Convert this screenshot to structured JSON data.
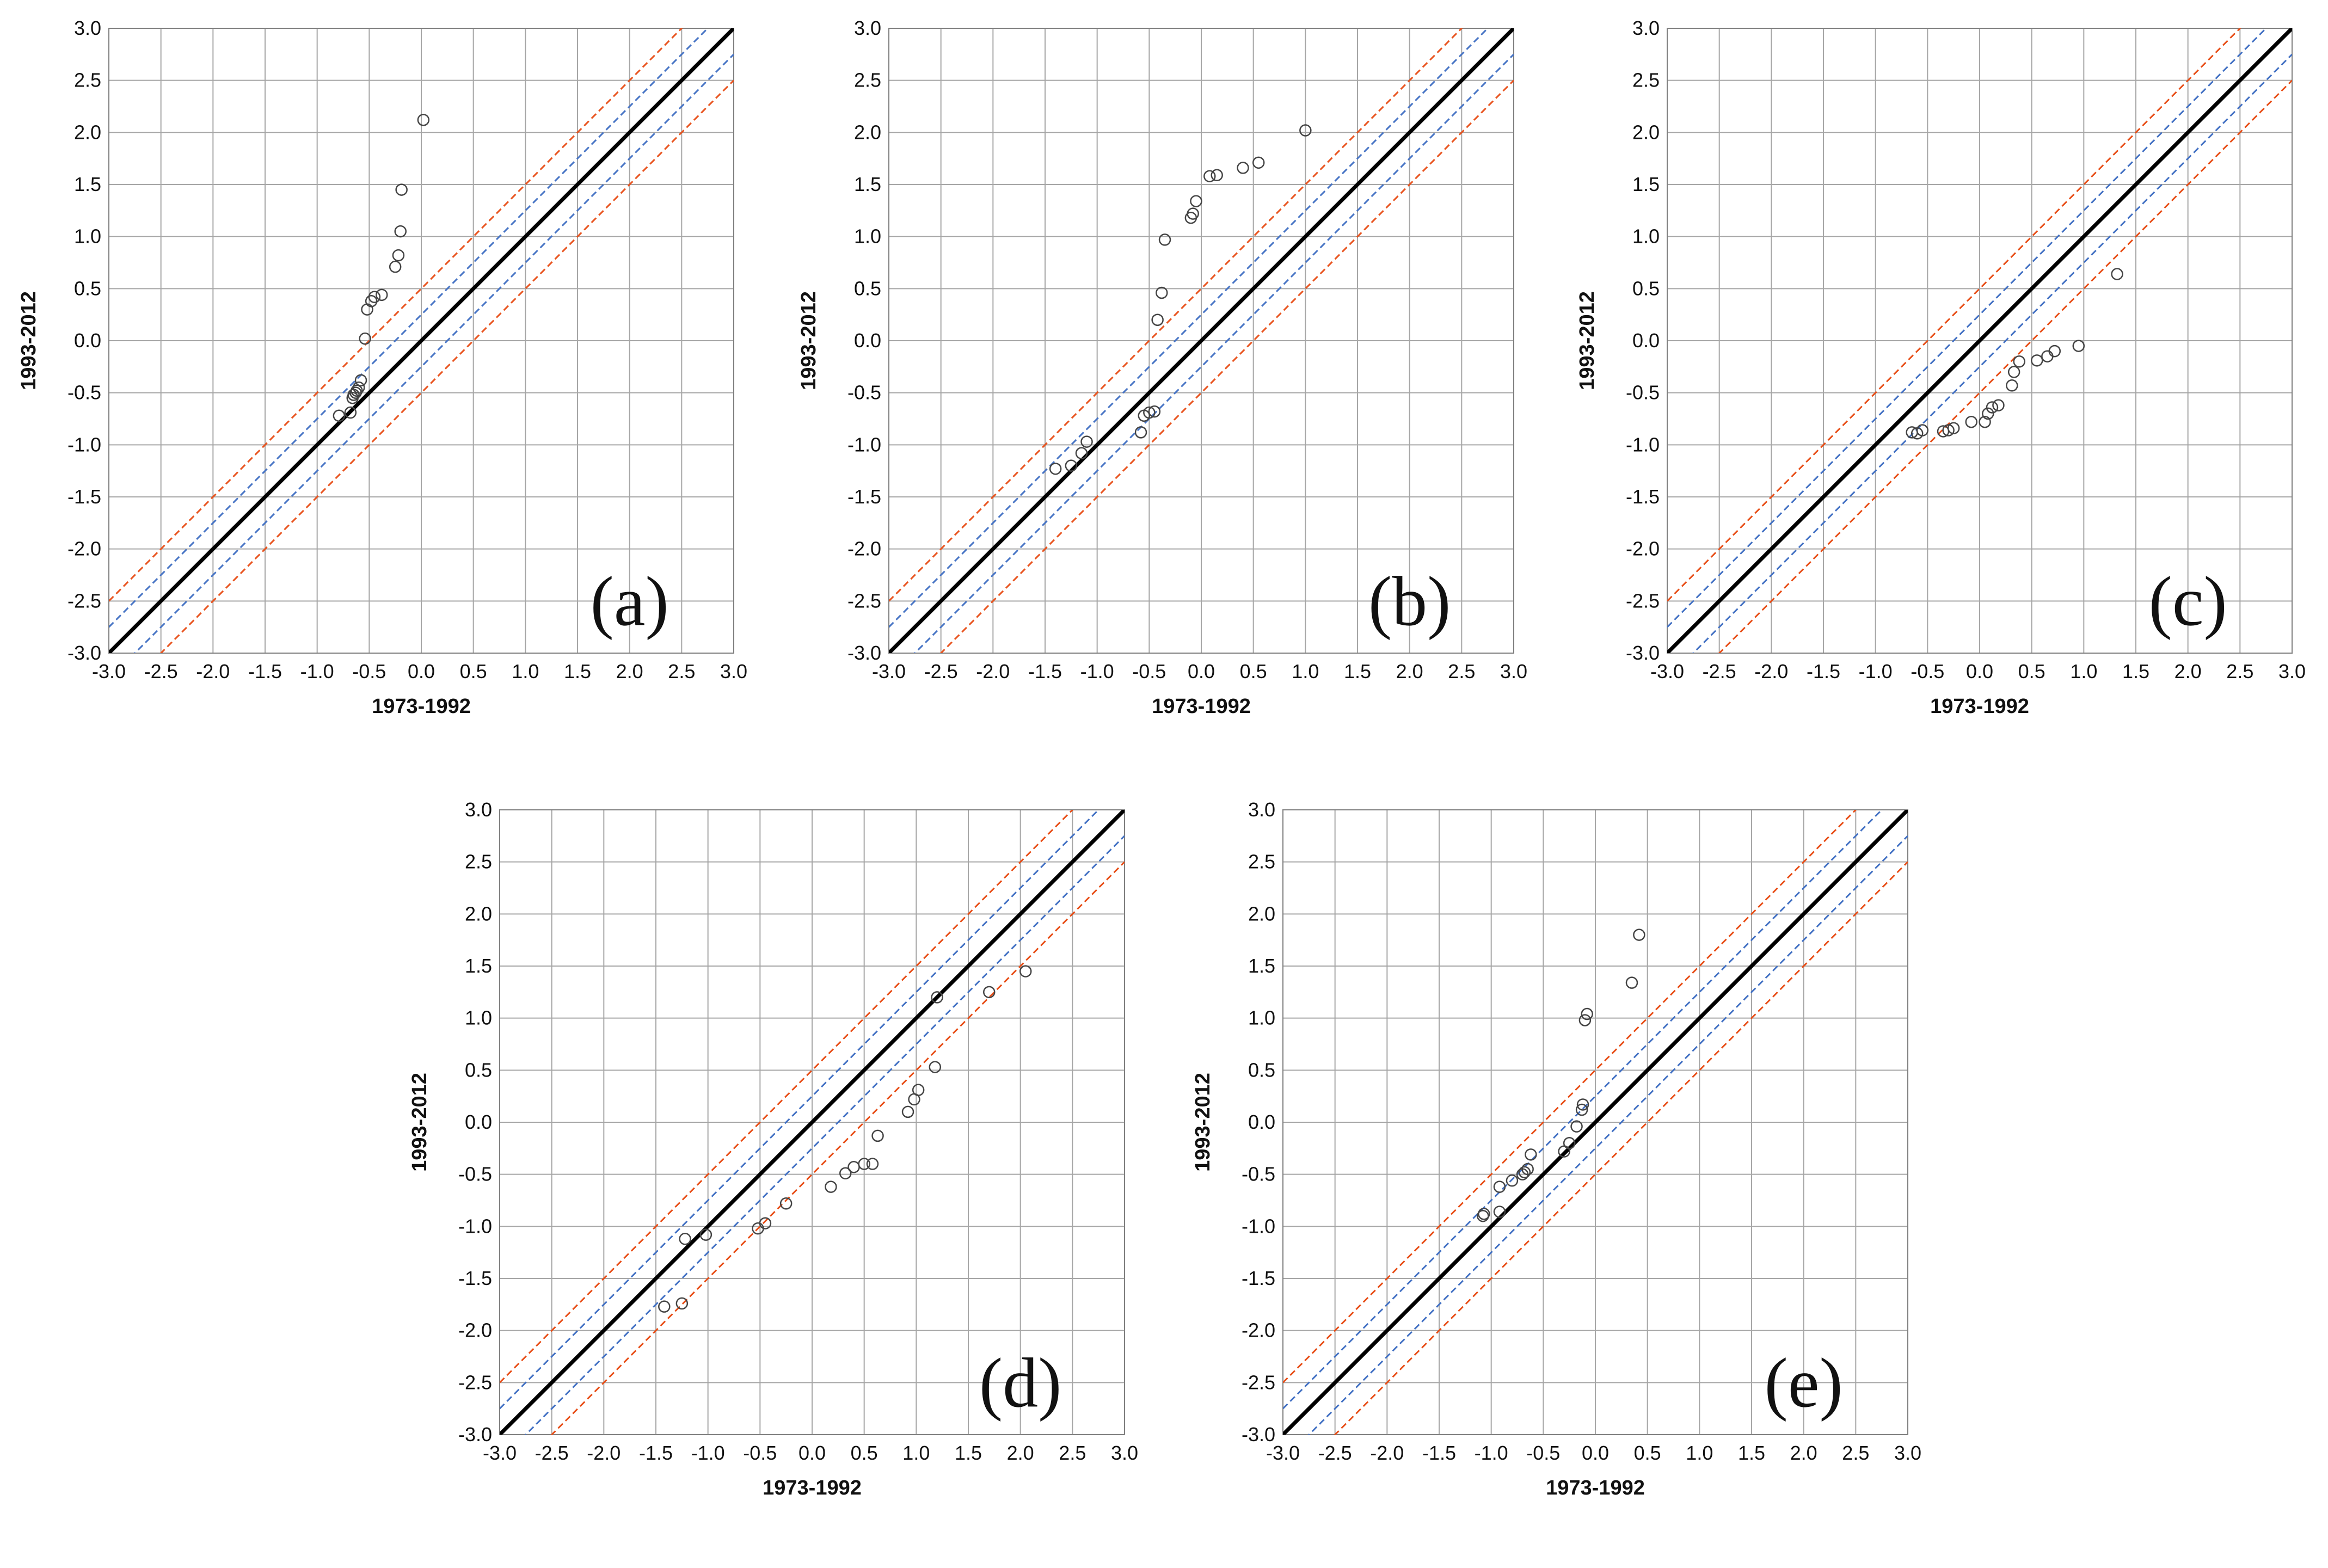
{
  "colors": {
    "grid": "#a6a6a6",
    "axis": "#7f7f7f",
    "identity_line": "#000000",
    "inner_band": "#4472c4",
    "outer_band": "#e8501a",
    "marker": "#444444"
  },
  "chart_data": [
    {
      "type": "scatter",
      "panel_label": "(a)",
      "xlabel": "1973-1992",
      "ylabel": "1993-2012",
      "xlim": [
        -3.0,
        3.0
      ],
      "ylim": [
        -3.0,
        3.0
      ],
      "ticks": [
        "-3.0",
        "-2.5",
        "-2.0",
        "-1.5",
        "-1.0",
        "-0.5",
        "0.0",
        "0.5",
        "1.0",
        "1.5",
        "2.0",
        "2.5",
        "3.0"
      ],
      "grid": true,
      "reference_lines": {
        "identity": "y = x",
        "inner_band_offset": 0.25,
        "outer_band_offset": 0.5
      },
      "points": [
        [
          0.02,
          2.12
        ],
        [
          -0.19,
          1.45
        ],
        [
          -0.2,
          1.05
        ],
        [
          -0.22,
          0.82
        ],
        [
          -0.25,
          0.71
        ],
        [
          -0.38,
          0.44
        ],
        [
          -0.45,
          0.42
        ],
        [
          -0.48,
          0.38
        ],
        [
          -0.52,
          0.3
        ],
        [
          -0.54,
          0.02
        ],
        [
          -0.58,
          -0.38
        ],
        [
          -0.6,
          -0.45
        ],
        [
          -0.62,
          -0.48
        ],
        [
          -0.63,
          -0.5
        ],
        [
          -0.65,
          -0.52
        ],
        [
          -0.66,
          -0.55
        ],
        [
          -0.68,
          -0.69
        ],
        [
          -0.79,
          -0.72
        ]
      ]
    },
    {
      "type": "scatter",
      "panel_label": "(b)",
      "xlabel": "1973-1992",
      "ylabel": "1993-2012",
      "xlim": [
        -3.0,
        3.0
      ],
      "ylim": [
        -3.0,
        3.0
      ],
      "ticks": [
        "-3.0",
        "-2.5",
        "-2.0",
        "-1.5",
        "-1.0",
        "-0.5",
        "0.0",
        "0.5",
        "1.0",
        "1.5",
        "2.0",
        "2.5",
        "3.0"
      ],
      "grid": true,
      "reference_lines": {
        "identity": "y = x",
        "inner_band_offset": 0.25,
        "outer_band_offset": 0.5
      },
      "points": [
        [
          1.0,
          2.02
        ],
        [
          0.55,
          1.71
        ],
        [
          0.4,
          1.66
        ],
        [
          0.15,
          1.59
        ],
        [
          0.08,
          1.58
        ],
        [
          -0.05,
          1.34
        ],
        [
          -0.08,
          1.22
        ],
        [
          -0.1,
          1.18
        ],
        [
          -0.35,
          0.97
        ],
        [
          -0.38,
          0.46
        ],
        [
          -0.42,
          0.2
        ],
        [
          -0.45,
          -0.68
        ],
        [
          -0.5,
          -0.69
        ],
        [
          -0.55,
          -0.72
        ],
        [
          -0.58,
          -0.88
        ],
        [
          -1.1,
          -0.97
        ],
        [
          -1.15,
          -1.08
        ],
        [
          -1.25,
          -1.2
        ],
        [
          -1.4,
          -1.23
        ]
      ]
    },
    {
      "type": "scatter",
      "panel_label": "(c)",
      "xlabel": "1973-1992",
      "ylabel": "1993-2012",
      "xlim": [
        -3.0,
        3.0
      ],
      "ylim": [
        -3.0,
        3.0
      ],
      "ticks": [
        "-3.0",
        "-2.5",
        "-2.0",
        "-1.5",
        "-1.0",
        "-0.5",
        "0.0",
        "0.5",
        "1.0",
        "1.5",
        "2.0",
        "2.5",
        "3.0"
      ],
      "grid": true,
      "reference_lines": {
        "identity": "y = x",
        "inner_band_offset": 0.25,
        "outer_band_offset": 0.5
      },
      "points": [
        [
          1.32,
          0.64
        ],
        [
          0.95,
          -0.05
        ],
        [
          0.72,
          -0.1
        ],
        [
          0.65,
          -0.15
        ],
        [
          0.55,
          -0.19
        ],
        [
          0.38,
          -0.2
        ],
        [
          0.33,
          -0.3
        ],
        [
          0.31,
          -0.43
        ],
        [
          0.18,
          -0.62
        ],
        [
          0.12,
          -0.64
        ],
        [
          0.08,
          -0.7
        ],
        [
          0.05,
          -0.78
        ],
        [
          -0.08,
          -0.78
        ],
        [
          -0.25,
          -0.84
        ],
        [
          -0.3,
          -0.86
        ],
        [
          -0.35,
          -0.87
        ],
        [
          -0.55,
          -0.86
        ],
        [
          -0.6,
          -0.89
        ],
        [
          -0.65,
          -0.88
        ]
      ]
    },
    {
      "type": "scatter",
      "panel_label": "(d)",
      "xlabel": "1973-1992",
      "ylabel": "1993-2012",
      "xlim": [
        -3.0,
        3.0
      ],
      "ylim": [
        -3.0,
        3.0
      ],
      "ticks": [
        "-3.0",
        "-2.5",
        "-2.0",
        "-1.5",
        "-1.0",
        "-0.5",
        "0.0",
        "0.5",
        "1.0",
        "1.5",
        "2.0",
        "2.5",
        "3.0"
      ],
      "grid": true,
      "reference_lines": {
        "identity": "y = x",
        "inner_band_offset": 0.25,
        "outer_band_offset": 0.5
      },
      "points": [
        [
          2.05,
          1.45
        ],
        [
          1.7,
          1.25
        ],
        [
          1.2,
          1.2
        ],
        [
          1.18,
          0.53
        ],
        [
          1.02,
          0.31
        ],
        [
          0.98,
          0.22
        ],
        [
          0.92,
          0.1
        ],
        [
          0.63,
          -0.13
        ],
        [
          0.58,
          -0.4
        ],
        [
          0.5,
          -0.4
        ],
        [
          0.4,
          -0.43
        ],
        [
          0.32,
          -0.49
        ],
        [
          0.18,
          -0.62
        ],
        [
          -0.25,
          -0.78
        ],
        [
          -0.45,
          -0.97
        ],
        [
          -0.52,
          -1.02
        ],
        [
          -1.02,
          -1.08
        ],
        [
          -1.22,
          -1.12
        ],
        [
          -1.25,
          -1.74
        ],
        [
          -1.42,
          -1.77
        ]
      ]
    },
    {
      "type": "scatter",
      "panel_label": "(e)",
      "xlabel": "1973-1992",
      "ylabel": "1993-2012",
      "xlim": [
        -3.0,
        3.0
      ],
      "ylim": [
        -3.0,
        3.0
      ],
      "ticks": [
        "-3.0",
        "-2.5",
        "-2.0",
        "-1.5",
        "-1.0",
        "-0.5",
        "0.0",
        "0.5",
        "1.0",
        "1.5",
        "2.0",
        "2.5",
        "3.0"
      ],
      "grid": true,
      "reference_lines": {
        "identity": "y = x",
        "inner_band_offset": 0.25,
        "outer_band_offset": 0.5
      },
      "points": [
        [
          0.42,
          1.8
        ],
        [
          0.35,
          1.34
        ],
        [
          -0.08,
          1.04
        ],
        [
          -0.1,
          0.98
        ],
        [
          -0.12,
          0.17
        ],
        [
          -0.13,
          0.12
        ],
        [
          -0.18,
          -0.04
        ],
        [
          -0.25,
          -0.2
        ],
        [
          -0.3,
          -0.28
        ],
        [
          -0.62,
          -0.31
        ],
        [
          -0.65,
          -0.45
        ],
        [
          -0.68,
          -0.48
        ],
        [
          -0.7,
          -0.5
        ],
        [
          -0.8,
          -0.56
        ],
        [
          -0.92,
          -0.62
        ],
        [
          -0.92,
          -0.86
        ],
        [
          -1.07,
          -0.88
        ],
        [
          -1.08,
          -0.9
        ]
      ]
    }
  ]
}
